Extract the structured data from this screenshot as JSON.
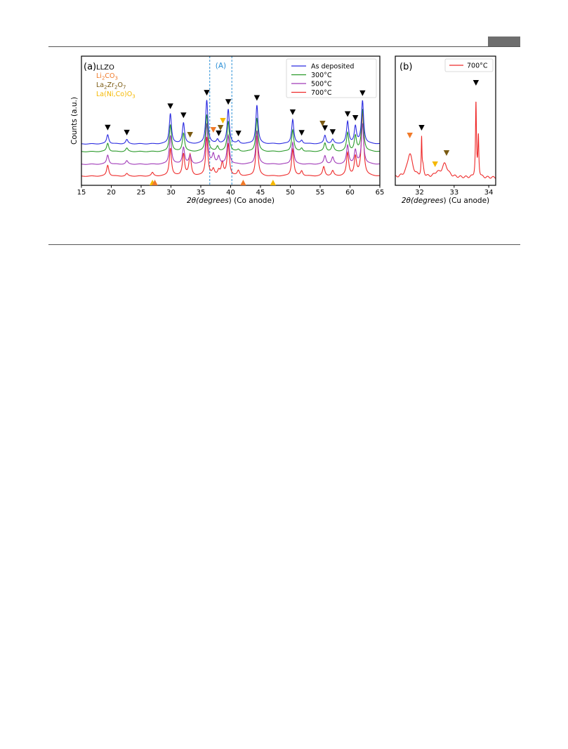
{
  "page": {
    "colors": {
      "rule": "#555555",
      "header_tab": "#6e6e6e"
    }
  },
  "chart_data": [
    {
      "panel": "(a)",
      "type": "line",
      "xlabel": "2θ(degrees) (Co anode)",
      "ylabel": "Counts (a.u.)",
      "xlim": [
        15,
        65
      ],
      "xticks": [
        15,
        20,
        25,
        30,
        35,
        40,
        45,
        50,
        55,
        60,
        65
      ],
      "y_ticks_shown": false,
      "highlight_region": {
        "label": "(A)",
        "x_range": [
          36.5,
          40.2
        ],
        "color": "#2a8fd6"
      },
      "phase_legend": [
        {
          "name": "LLZO",
          "color": "#000000",
          "marker": "down"
        },
        {
          "name": "Li2CO3",
          "color": "#f07a2a",
          "marker": "down"
        },
        {
          "name": "La2Zr2O7",
          "color": "#7a5a12",
          "marker": "down"
        },
        {
          "name": "La(Ni,Co)O3",
          "color": "#f5b800",
          "marker": "up"
        }
      ],
      "legend_position": "top-right",
      "series": [
        {
          "name": "As deposited",
          "color": "#2a2ae0",
          "offset": 3.0,
          "peaks": [
            [
              19.4,
              0.55
            ],
            [
              22.6,
              0.25
            ],
            [
              29.9,
              1.8
            ],
            [
              32.1,
              1.25
            ],
            [
              36.0,
              2.6
            ],
            [
              37.8,
              0.25
            ],
            [
              39.6,
              2.05
            ],
            [
              41.3,
              0.15
            ],
            [
              44.4,
              2.3
            ],
            [
              50.4,
              1.45
            ],
            [
              51.9,
              0.2
            ],
            [
              55.8,
              0.5
            ],
            [
              57.1,
              0.25
            ],
            [
              59.6,
              1.3
            ],
            [
              60.9,
              1.0
            ],
            [
              62.1,
              2.55
            ]
          ]
        },
        {
          "name": "300°C",
          "color": "#2a9a2a",
          "offset": 2.0,
          "peaks": [
            [
              19.4,
              0.5
            ],
            [
              22.6,
              0.2
            ],
            [
              29.9,
              1.6
            ],
            [
              32.1,
              1.1
            ],
            [
              36.0,
              2.2
            ],
            [
              37.8,
              0.3
            ],
            [
              39.6,
              1.8
            ],
            [
              41.3,
              0.1
            ],
            [
              44.4,
              2.0
            ],
            [
              50.4,
              1.3
            ],
            [
              51.9,
              0.2
            ],
            [
              55.8,
              0.5
            ],
            [
              57.1,
              0.4
            ],
            [
              59.6,
              1.1
            ],
            [
              60.9,
              0.9
            ],
            [
              62.1,
              2.5
            ]
          ]
        },
        {
          "name": "500°C",
          "color": "#a03ab8",
          "offset": 1.0,
          "peaks": [
            [
              19.4,
              0.55
            ],
            [
              22.6,
              0.2
            ],
            [
              29.9,
              1.7
            ],
            [
              32.1,
              1.0
            ],
            [
              33.2,
              0.5
            ],
            [
              36.0,
              2.4
            ],
            [
              37.1,
              0.55
            ],
            [
              38.0,
              0.45
            ],
            [
              39.6,
              1.7
            ],
            [
              44.4,
              2.0
            ],
            [
              50.4,
              1.3
            ],
            [
              55.8,
              0.5
            ],
            [
              57.1,
              0.4
            ],
            [
              59.6,
              1.1
            ],
            [
              60.9,
              0.8
            ],
            [
              62.1,
              2.4
            ]
          ]
        },
        {
          "name": "700°C",
          "color": "#ee2a2a",
          "offset": 0.0,
          "peaks": [
            [
              19.4,
              0.65
            ],
            [
              22.6,
              0.15
            ],
            [
              26.9,
              0.2
            ],
            [
              29.9,
              1.65
            ],
            [
              32.1,
              1.3
            ],
            [
              33.2,
              1.25
            ],
            [
              36.0,
              2.3
            ],
            [
              37.1,
              0.35
            ],
            [
              38.0,
              0.3
            ],
            [
              38.6,
              0.75
            ],
            [
              39.6,
              1.9
            ],
            [
              41.3,
              0.3
            ],
            [
              44.4,
              2.4
            ],
            [
              50.4,
              1.6
            ],
            [
              51.9,
              0.3
            ],
            [
              55.6,
              0.55
            ],
            [
              57.1,
              0.3
            ],
            [
              59.6,
              1.35
            ],
            [
              60.9,
              1.1
            ],
            [
              62.1,
              3.9
            ]
          ]
        }
      ],
      "phase_markers": [
        {
          "phase": "LLZO",
          "marker": "down",
          "x": [
            19.4,
            22.6,
            29.9,
            32.1,
            36.0,
            38.0,
            39.6,
            41.3,
            44.4,
            50.4,
            51.9,
            55.8,
            57.1,
            59.6,
            60.9,
            62.1
          ]
        },
        {
          "phase": "Li2CO3",
          "marker": "down",
          "x": [
            37.1
          ]
        },
        {
          "phase": "La2Zr2O7",
          "marker": "down",
          "x": [
            33.2,
            38.3,
            55.4
          ]
        },
        {
          "phase": "La(Ni,Co)O3",
          "marker": "down",
          "x": [
            38.7
          ]
        },
        {
          "phase": "La(Ni,Co)O3",
          "marker": "up",
          "x": [
            26.9,
            47.1
          ]
        },
        {
          "phase": "Li2CO3",
          "marker": "up",
          "x": [
            27.3,
            42.1
          ]
        }
      ]
    },
    {
      "panel": "(b)",
      "type": "line",
      "xlabel": "2θ(degrees) (Cu anode)",
      "xlim": [
        31.3,
        34.2
      ],
      "xticks": [
        32,
        33,
        34
      ],
      "y_ticks_shown": false,
      "legend_position": "top-right",
      "series": [
        {
          "name": "700°C",
          "color": "#ee2a2a",
          "peaks": [
            [
              31.72,
              0.5,
              0.09
            ],
            [
              32.06,
              0.75,
              0.012
            ],
            [
              32.1,
              0.2,
              0.03
            ],
            [
              32.5,
              0.08,
              0.08
            ],
            [
              32.73,
              0.28,
              0.1
            ],
            [
              33.63,
              1.55,
              0.016
            ],
            [
              33.7,
              0.85,
              0.016
            ]
          ]
        }
      ],
      "phase_markers": [
        {
          "phase": "Li2CO3",
          "marker": "down",
          "x": [
            31.72
          ]
        },
        {
          "phase": "LLZO",
          "marker": "down",
          "x": [
            32.06,
            33.63
          ]
        },
        {
          "phase": "La(Ni,Co)O3",
          "marker": "down",
          "x": [
            32.45
          ]
        },
        {
          "phase": "La2Zr2O7",
          "marker": "down",
          "x": [
            32.78
          ]
        }
      ]
    }
  ]
}
